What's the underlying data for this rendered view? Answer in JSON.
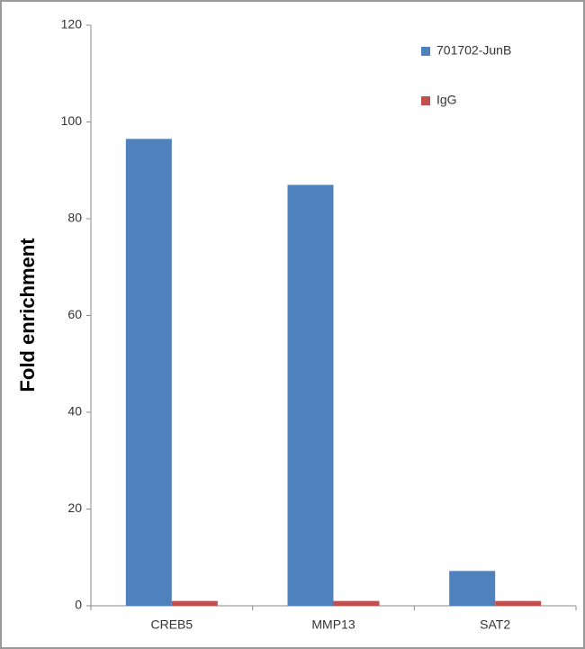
{
  "chart_data": {
    "type": "bar",
    "y_label": "Fold enrichment",
    "categories": [
      "CREB5",
      "MMP13",
      "SAT2"
    ],
    "series": [
      {
        "name": "701702-JunB",
        "color": "#4f81bd",
        "values": [
          96.5,
          87,
          7.2
        ]
      },
      {
        "name": "IgG",
        "color": "#c0504d",
        "values": [
          1,
          1,
          1
        ]
      }
    ],
    "ylim": [
      0,
      120
    ],
    "yticks": [
      0,
      20,
      40,
      60,
      80,
      100,
      120
    ],
    "grid": false,
    "legend": "top-right"
  }
}
